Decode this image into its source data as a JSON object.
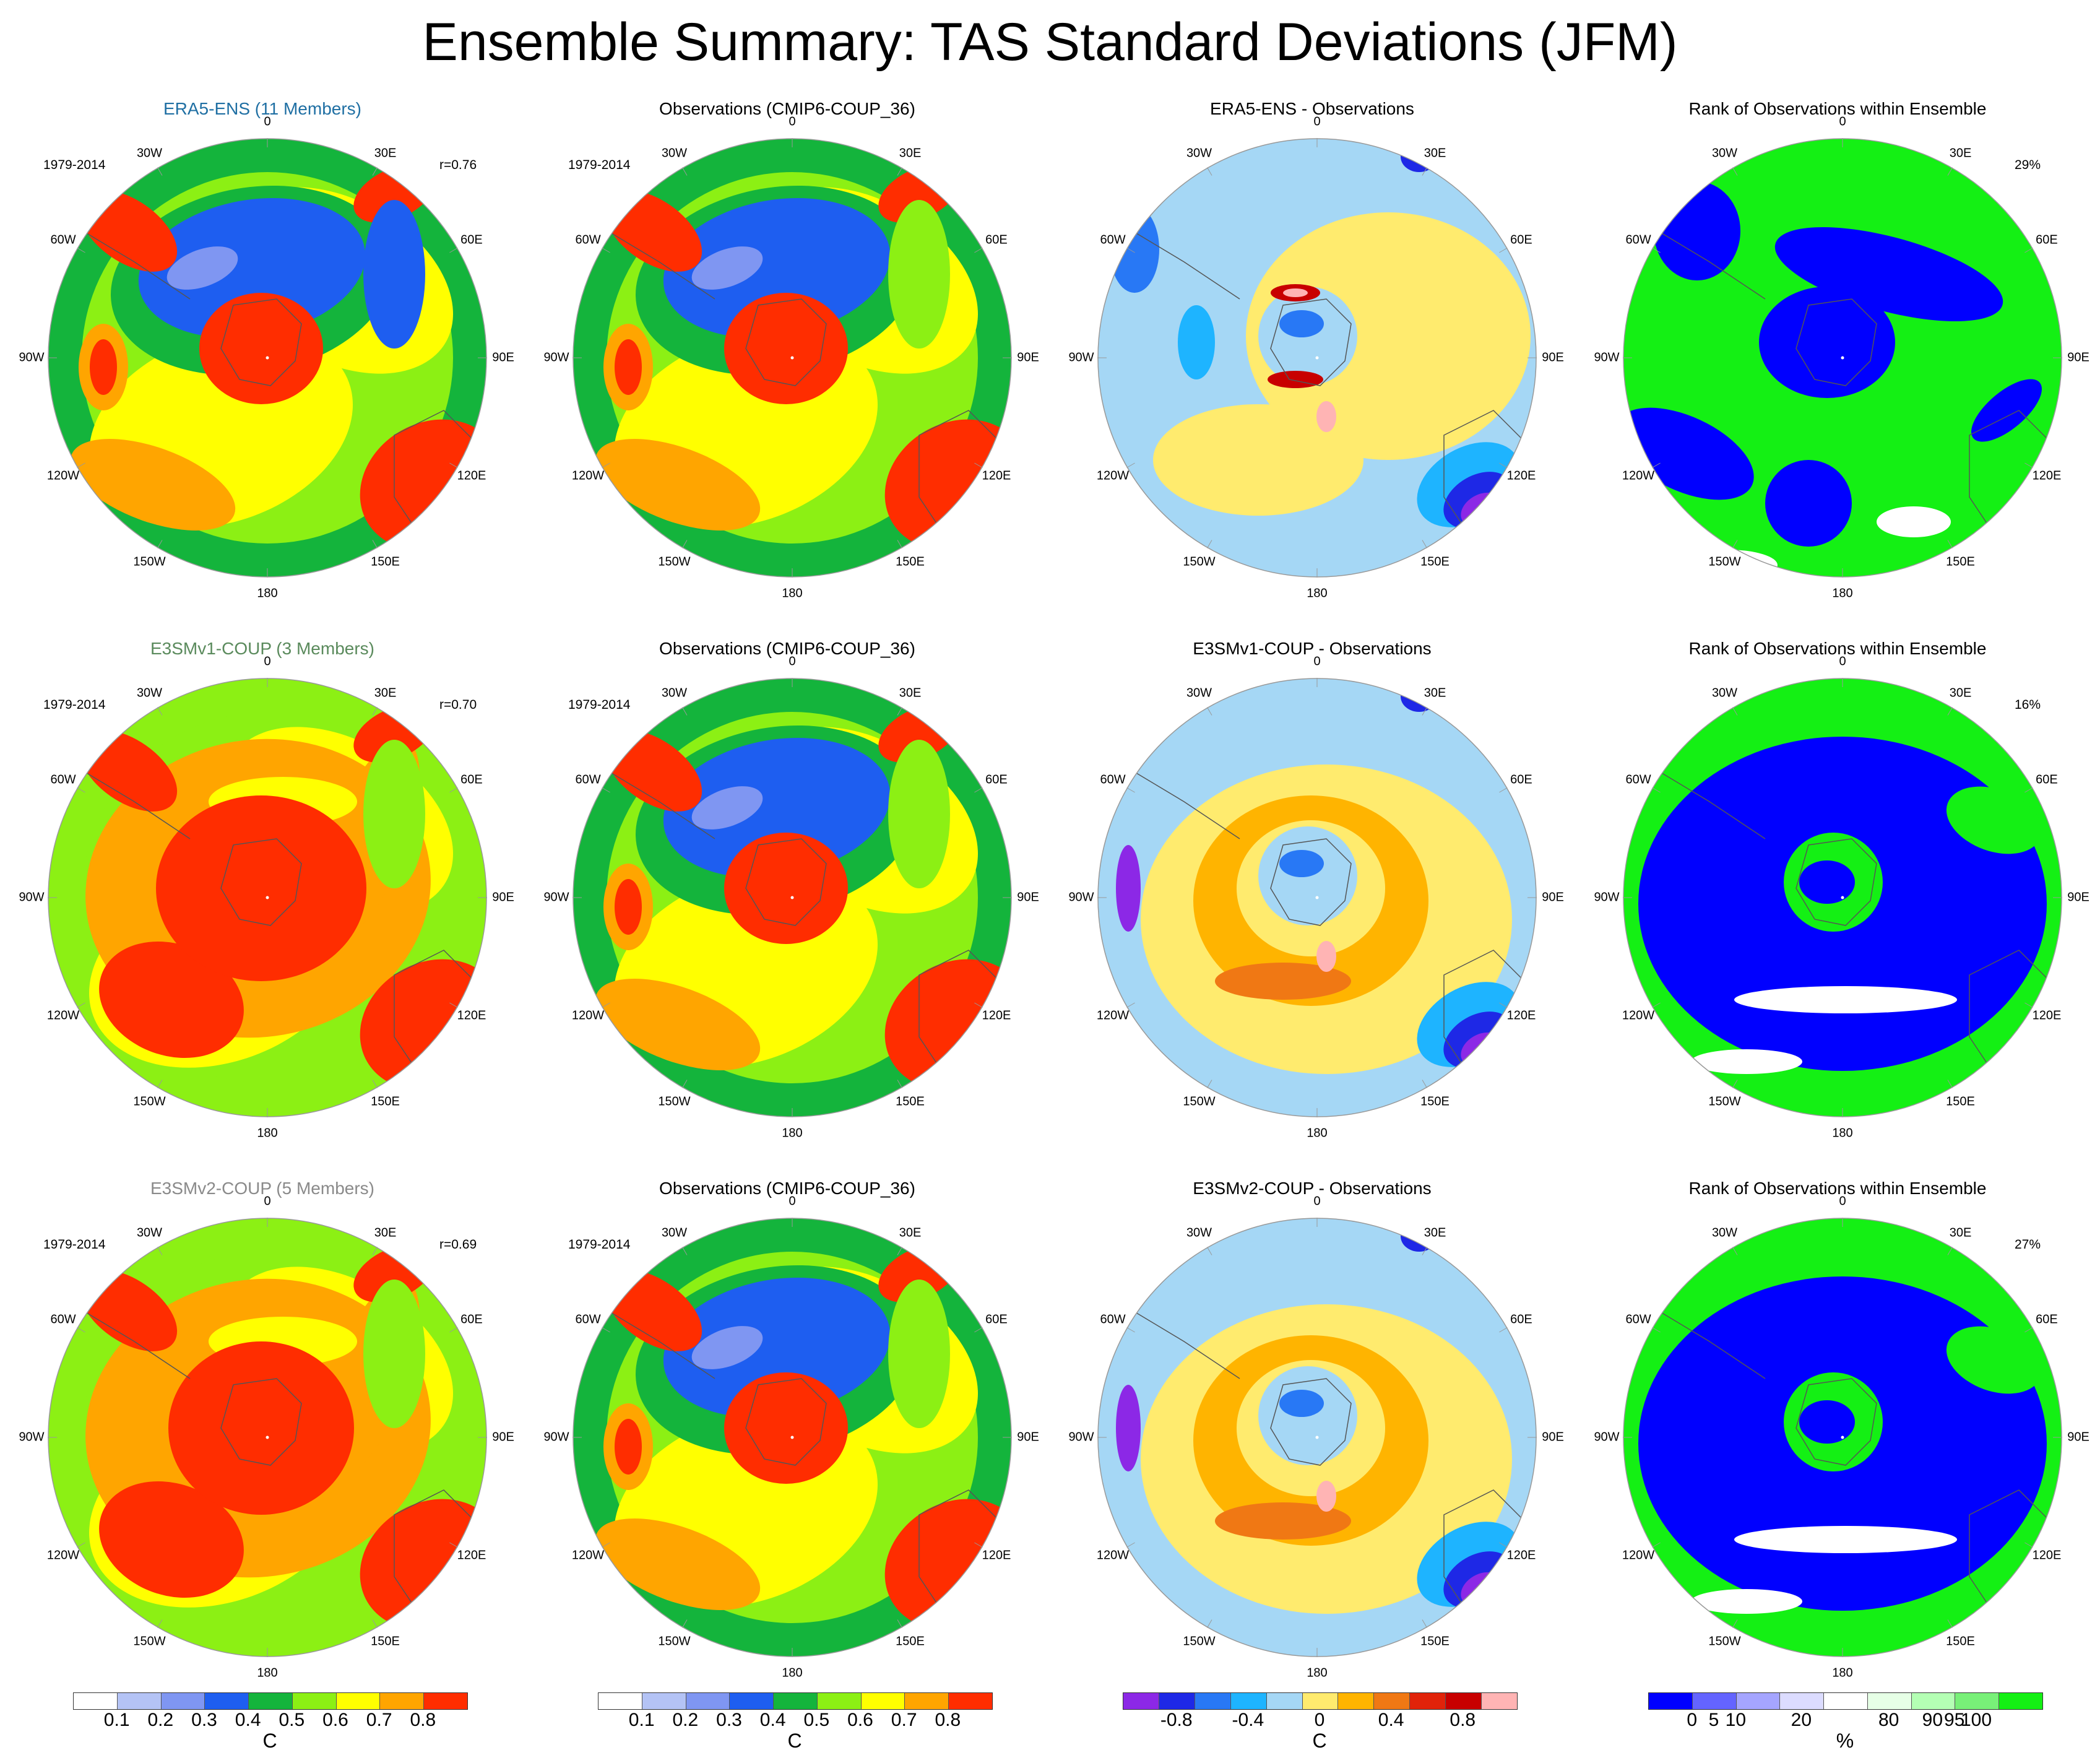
{
  "title": "Ensemble Summary: TAS Standard Deviations (JFM)",
  "lon_labels": [
    "0",
    "30E",
    "60E",
    "90E",
    "120E",
    "150E",
    "180",
    "150W",
    "120W",
    "90W",
    "60W",
    "30W"
  ],
  "rows": [
    {
      "panels": [
        {
          "title": "ERA5-ENS (11 Members)",
          "title_color": "#1f6fa3",
          "period": "1979-2014",
          "corner": "r=0.76",
          "kind": "std",
          "variant": "era"
        },
        {
          "title": "Observations (CMIP6-COUP_36)",
          "period": "1979-2014",
          "corner": "",
          "kind": "std",
          "variant": "obs"
        },
        {
          "title": "ERA5-ENS - Observations",
          "period": "",
          "corner": "",
          "kind": "diff",
          "variant": "era"
        },
        {
          "title": "Rank of Observations within Ensemble",
          "period": "",
          "corner": "29%",
          "kind": "rank",
          "variant": "era"
        }
      ]
    },
    {
      "panels": [
        {
          "title": "E3SMv1-COUP (3 Members)",
          "title_color": "#5a8a5c",
          "period": "1979-2014",
          "corner": "r=0.70",
          "kind": "std",
          "variant": "e1"
        },
        {
          "title": "Observations (CMIP6-COUP_36)",
          "period": "1979-2014",
          "corner": "",
          "kind": "std",
          "variant": "obs"
        },
        {
          "title": "E3SMv1-COUP - Observations",
          "period": "",
          "corner": "",
          "kind": "diff",
          "variant": "e1"
        },
        {
          "title": "Rank of Observations within Ensemble",
          "period": "",
          "corner": "16%",
          "kind": "rank",
          "variant": "e1"
        }
      ]
    },
    {
      "panels": [
        {
          "title": "E3SMv2-COUP (5 Members)",
          "title_color": "#8a8a8a",
          "period": "1979-2014",
          "corner": "r=0.69",
          "kind": "std",
          "variant": "e2"
        },
        {
          "title": "Observations (CMIP6-COUP_36)",
          "period": "1979-2014",
          "corner": "",
          "kind": "std",
          "variant": "obs"
        },
        {
          "title": "E3SMv2-COUP - Observations",
          "period": "",
          "corner": "",
          "kind": "diff",
          "variant": "e2"
        },
        {
          "title": "Rank of Observations within Ensemble",
          "period": "",
          "corner": "27%",
          "kind": "rank",
          "variant": "e2"
        }
      ]
    }
  ],
  "colorbars": [
    {
      "name": "std",
      "unit": "C",
      "colors": [
        "#ffffff",
        "#b4c3f5",
        "#7f96f2",
        "#1e5ef0",
        "#14b43c",
        "#8cf014",
        "#ffff00",
        "#ffa500",
        "#ff2d00"
      ],
      "ticks": [
        "0.1",
        "0.2",
        "0.3",
        "0.4",
        "0.5",
        "0.6",
        "0.7",
        "0.8"
      ]
    },
    {
      "name": "std",
      "unit": "C",
      "colors": [
        "#ffffff",
        "#b4c3f5",
        "#7f96f2",
        "#1e5ef0",
        "#14b43c",
        "#8cf014",
        "#ffff00",
        "#ffa500",
        "#ff2d00"
      ],
      "ticks": [
        "0.1",
        "0.2",
        "0.3",
        "0.4",
        "0.5",
        "0.6",
        "0.7",
        "0.8"
      ]
    },
    {
      "name": "diff",
      "unit": "C",
      "colors": [
        "#8c28e6",
        "#1e28e6",
        "#2878f5",
        "#1eb4ff",
        "#a5d7f5",
        "#ffeb6e",
        "#ffb400",
        "#f07814",
        "#e1230a",
        "#c80000",
        "#ffb4b4"
      ],
      "ticks": [
        "-0.8",
        "-0.4",
        "0",
        "0.4",
        "0.8"
      ]
    },
    {
      "name": "rank",
      "unit": "%",
      "colors": [
        "#0000ff",
        "#6464ff",
        "#a5a5ff",
        "#dcdcff",
        "#ffffff",
        "#e6ffe6",
        "#b4ffb4",
        "#78f078",
        "#14f014"
      ],
      "ticks": [
        "0",
        "5",
        "10",
        "20",
        "80",
        "90",
        "95",
        "100"
      ]
    }
  ]
}
